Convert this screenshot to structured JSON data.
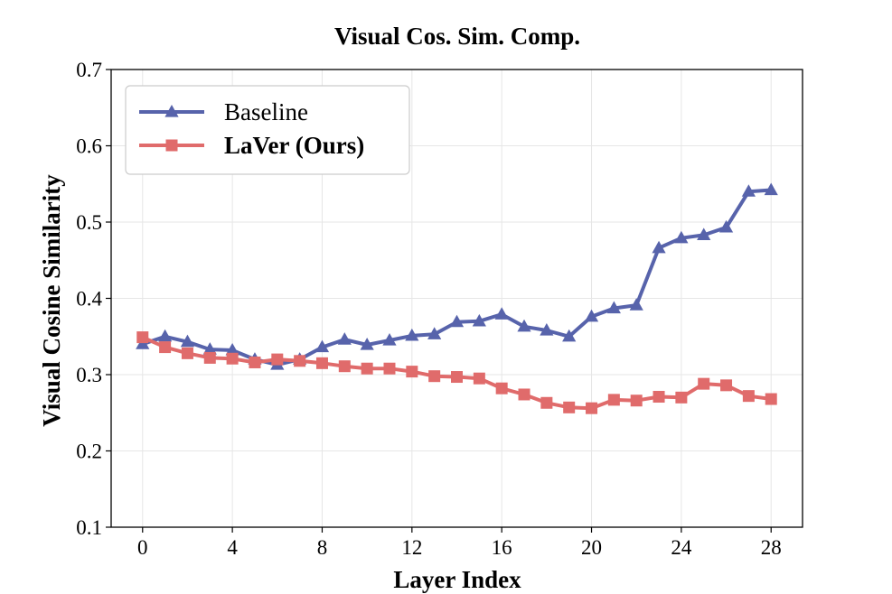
{
  "chart_data": {
    "type": "line",
    "title": "Visual Cos. Sim. Comp.",
    "xlabel": "Layer Index",
    "ylabel": "Visual Cosine Similarity",
    "xlim": [
      -1.4,
      29.4
    ],
    "ylim": [
      0.1,
      0.7
    ],
    "xticks": [
      0,
      4,
      8,
      12,
      16,
      20,
      24,
      28
    ],
    "xtick_labels": [
      "0",
      "4",
      "8",
      "12",
      "16",
      "20",
      "24",
      "28"
    ],
    "yticks": [
      0.1,
      0.2,
      0.3,
      0.4,
      0.5,
      0.6,
      0.7
    ],
    "ytick_labels": [
      "0.1",
      "0.2",
      "0.3",
      "0.4",
      "0.5",
      "0.6",
      "0.7"
    ],
    "grid": true,
    "legend_position": "top-left",
    "x": [
      0,
      1,
      2,
      3,
      4,
      5,
      6,
      7,
      8,
      9,
      10,
      11,
      12,
      13,
      14,
      15,
      16,
      17,
      18,
      19,
      20,
      21,
      22,
      23,
      24,
      25,
      26,
      27,
      28
    ],
    "series": [
      {
        "name": "Baseline",
        "color": "#5763ab",
        "marker": "triangle",
        "bold_label": false,
        "values": [
          0.34,
          0.35,
          0.343,
          0.333,
          0.332,
          0.32,
          0.313,
          0.32,
          0.336,
          0.346,
          0.339,
          0.345,
          0.351,
          0.353,
          0.369,
          0.37,
          0.379,
          0.363,
          0.358,
          0.35,
          0.376,
          0.387,
          0.391,
          0.466,
          0.479,
          0.483,
          0.493,
          0.54,
          0.542
        ]
      },
      {
        "name": "LaVer (Ours)",
        "color": "#e06b6b",
        "marker": "square",
        "bold_label": true,
        "values": [
          0.349,
          0.336,
          0.328,
          0.322,
          0.321,
          0.316,
          0.32,
          0.318,
          0.315,
          0.311,
          0.308,
          0.308,
          0.304,
          0.298,
          0.297,
          0.295,
          0.282,
          0.274,
          0.263,
          0.257,
          0.256,
          0.267,
          0.266,
          0.271,
          0.27,
          0.288,
          0.286,
          0.272,
          0.268
        ]
      }
    ]
  }
}
